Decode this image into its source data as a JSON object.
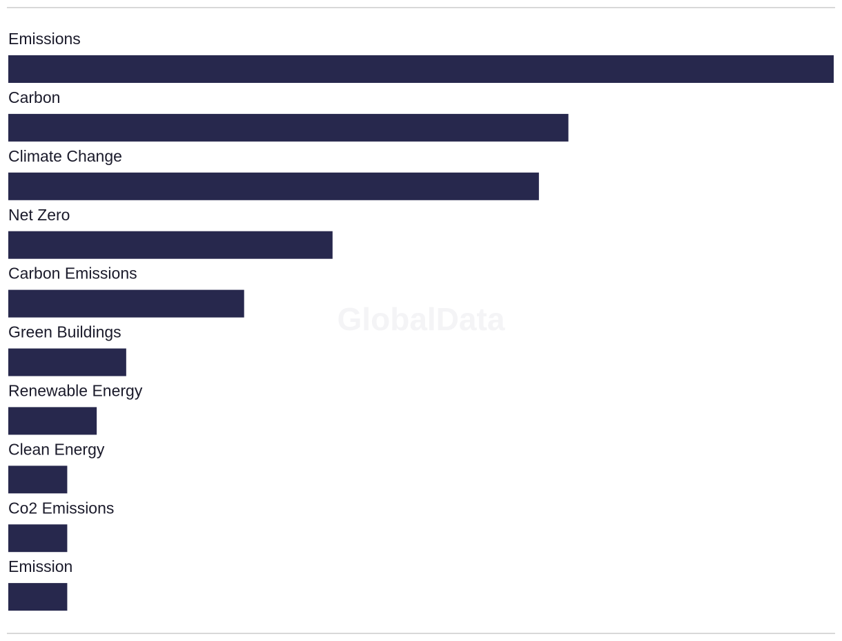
{
  "chart_data": {
    "type": "barh",
    "watermark": "GlobalData",
    "categories": [
      "Emissions",
      "Carbon",
      "Climate Change",
      "Net Zero",
      "Carbon Emissions",
      "Green Buildings",
      "Renewable Energy",
      "Clean Energy",
      "Co2 Emissions",
      "Emission"
    ],
    "values": [
      28,
      19,
      18,
      11,
      8,
      4,
      3,
      2,
      2,
      2
    ],
    "color": "#27284d",
    "xlim": [
      0,
      28
    ]
  }
}
